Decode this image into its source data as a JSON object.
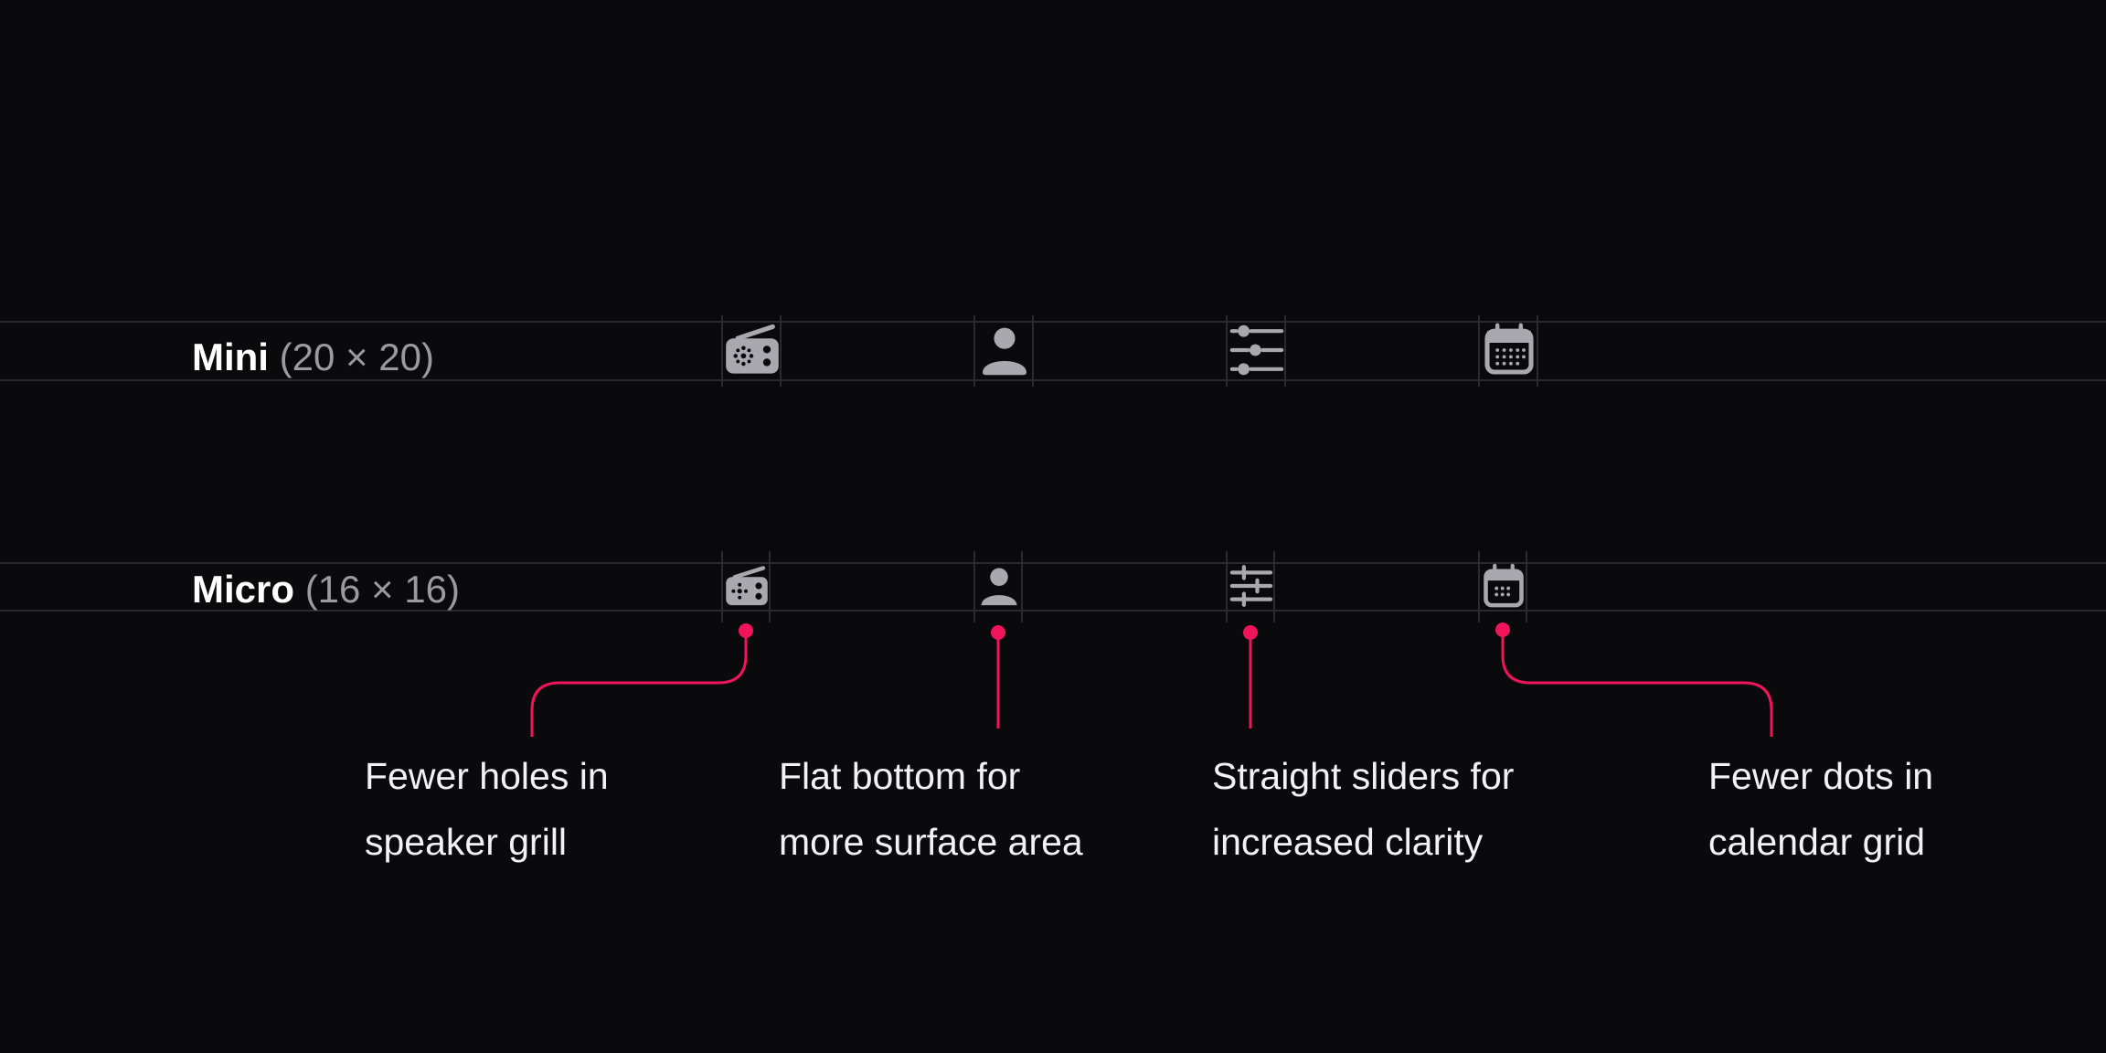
{
  "rows": [
    {
      "name": "Mini",
      "dims": "(20 × 20)"
    },
    {
      "name": "Micro",
      "dims": "(16 × 16)"
    }
  ],
  "icons": [
    "radio-icon",
    "user-icon",
    "sliders-icon",
    "calendar-icon"
  ],
  "annotations": [
    {
      "line1": "Fewer holes in",
      "line2": "speaker grill"
    },
    {
      "line1": "Flat bottom for",
      "line2": "more surface area"
    },
    {
      "line1": "Straight sliders for",
      "line2": "increased clarity"
    },
    {
      "line1": "Fewer dots in",
      "line2": "calendar grid"
    }
  ],
  "colors": {
    "background": "#0a0a0c",
    "accent": "#f0145a",
    "icon": "#a8a8ae",
    "guide": "#2a2a2e"
  }
}
